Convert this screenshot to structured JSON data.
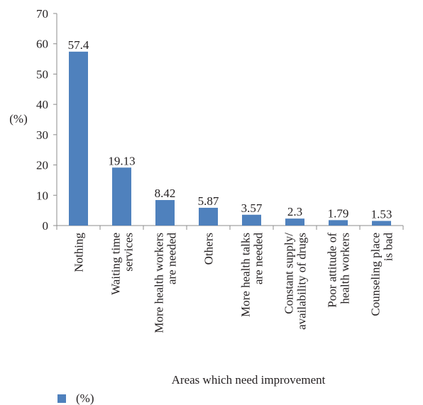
{
  "chart_data": {
    "type": "bar",
    "title": "",
    "xlabel": "Areas which need improvement",
    "ylabel": "(%)",
    "ylim": [
      0,
      70
    ],
    "yticks": [
      0,
      10,
      20,
      30,
      40,
      50,
      60,
      70
    ],
    "grid": false,
    "legend_position": "bottom-left",
    "bar_color": "#4f81bd",
    "categories": [
      [
        "Nothing"
      ],
      [
        "Waiting time",
        "services"
      ],
      [
        "More health workers",
        "are needed"
      ],
      [
        "Others"
      ],
      [
        "More health talks",
        "are needed"
      ],
      [
        "Constant supply/",
        "availability of drugs"
      ],
      [
        "Poor attitude of",
        "health workers"
      ],
      [
        "Counseling place",
        "is bad"
      ]
    ],
    "series": [
      {
        "name": "(%)",
        "values": [
          57.4,
          19.13,
          8.42,
          5.87,
          3.57,
          2.3,
          1.79,
          1.53
        ],
        "labels": [
          "57.4",
          "19.13",
          "8.42",
          "5.87",
          "3.57",
          "2.3",
          "1.79",
          "1.53"
        ]
      }
    ]
  }
}
